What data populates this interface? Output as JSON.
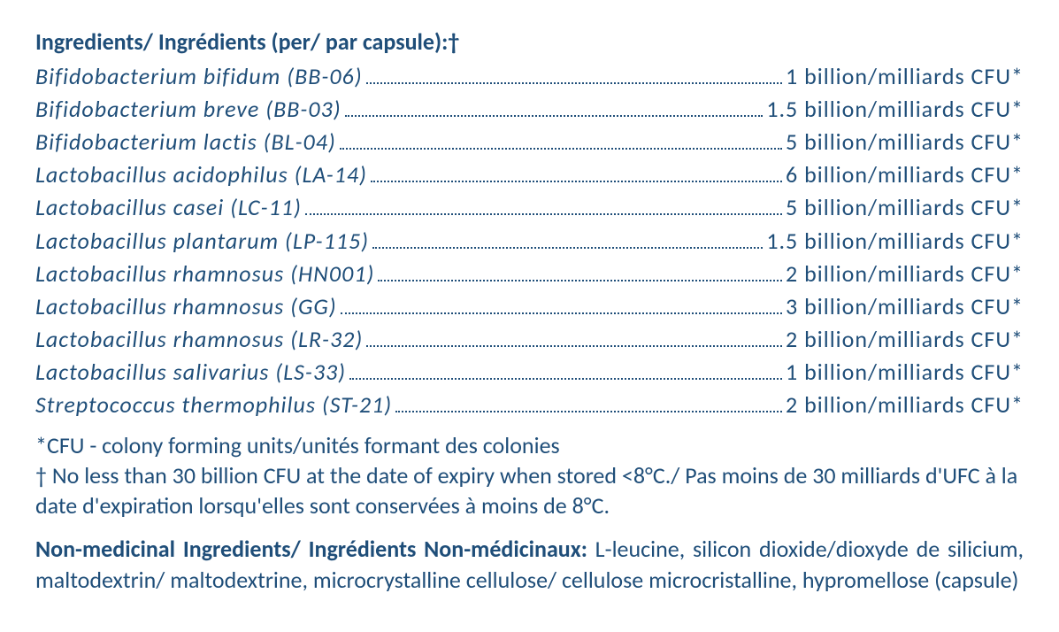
{
  "header_text": "Ingredients/ Ingrédients (per/ par capsule):†",
  "ingredients": [
    {
      "name": "Bifidobacterium bifidum (BB-06)",
      "value": "1 billion/milliards CFU*"
    },
    {
      "name": "Bifidobacterium breve (BB-03)",
      "value": "1.5 billion/milliards CFU*"
    },
    {
      "name": "Bifidobacterium lactis (BL-04)",
      "value": "5 billion/milliards CFU*"
    },
    {
      "name": "Lactobacillus acidophilus (LA-14)",
      "value": "6 billion/milliards CFU*"
    },
    {
      "name": "Lactobacillus casei (LC-11)",
      "value": "5 billion/milliards CFU*"
    },
    {
      "name": "Lactobacillus plantarum (LP-115)",
      "value": "1.5 billion/milliards CFU*"
    },
    {
      "name": "Lactobacillus rhamnosus (HN001)",
      "value": "2 billion/milliards CFU*"
    },
    {
      "name": "Lactobacillus rhamnosus (GG)",
      "value": "3 billion/milliards CFU*"
    },
    {
      "name": "Lactobacillus rhamnosus (LR-32)",
      "value": "2 billion/milliards CFU*"
    },
    {
      "name": "Lactobacillus salivarius (LS-33)",
      "value": "1 billion/milliards CFU*"
    },
    {
      "name": "Streptococcus thermophilus (ST-21)",
      "value": "2 billion/milliards CFU*"
    }
  ],
  "footnote_cfu": "*CFU - colony forming units/unités formant des colonies",
  "footnote_dagger": "† No less than 30 billion CFU at the date of expiry when stored <8°C./ Pas moins de 30 milliards d'UFC à la date d'expiration lorsqu'elles sont conservées à moins de 8°C.",
  "nonmed_label": "Non-medicinal Ingredients/ Ingrédients Non-médicinaux:",
  "nonmed_text": " L-leucine, silicon dioxide/dioxyde de silicium, maltodextrin/ maltodextrine, microcrystalline cellulose/ cellulose microcristalline, hypromellose (capsule)",
  "colors": {
    "text": "#1f4e79"
  }
}
